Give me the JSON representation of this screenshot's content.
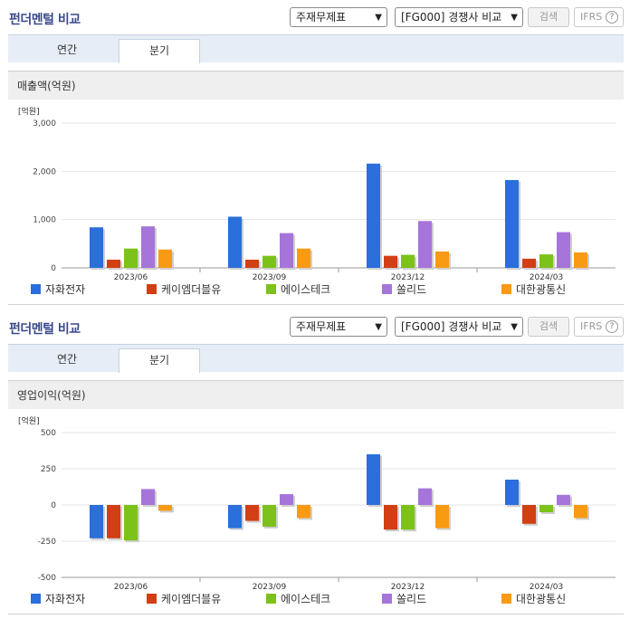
{
  "panels": [
    {
      "title": "펀더멘털 비교",
      "select1": "주재무제표",
      "select2": "[FG000] 경쟁사 비교",
      "search_label": "검색",
      "ifrs_label": "IFRS",
      "help_label": "?",
      "tabs": [
        "연간",
        "분기"
      ],
      "section_title": "매출액(억원)"
    },
    {
      "title": "펀더멘털 비교",
      "select1": "주재무제표",
      "select2": "[FG000] 경쟁사 비교",
      "search_label": "검색",
      "ifrs_label": "IFRS",
      "help_label": "?",
      "tabs": [
        "연간",
        "분기"
      ],
      "section_title": "영업이익(억원)"
    }
  ],
  "colors": [
    "#2a6fdb",
    "#d23f14",
    "#7cc21a",
    "#a675d9",
    "#f99a14"
  ],
  "chart_data": [
    {
      "type": "bar",
      "unit_label": "[억원]",
      "categories": [
        "2023/06",
        "2023/09",
        "2023/12",
        "2024/03"
      ],
      "yticks": [
        "3,000",
        "2,000",
        "1,000",
        "0"
      ],
      "ylim": [
        0,
        3000
      ],
      "series": [
        {
          "name": "자화전자",
          "values": [
            840,
            1060,
            2160,
            1820
          ]
        },
        {
          "name": "케이엠더블유",
          "values": [
            170,
            170,
            250,
            190
          ]
        },
        {
          "name": "에이스테크",
          "values": [
            400,
            250,
            270,
            280
          ]
        },
        {
          "name": "쏠리드",
          "values": [
            860,
            720,
            970,
            740
          ]
        },
        {
          "name": "대한광통신",
          "values": [
            380,
            400,
            340,
            320
          ]
        }
      ]
    },
    {
      "type": "bar",
      "unit_label": "[억원]",
      "categories": [
        "2023/06",
        "2023/09",
        "2023/12",
        "2024/03"
      ],
      "yticks": [
        "500",
        "250",
        "0",
        "-250",
        "-500"
      ],
      "ylim": [
        -500,
        500
      ],
      "series": [
        {
          "name": "자화전자",
          "values": [
            -230,
            -160,
            350,
            175
          ]
        },
        {
          "name": "케이엠더블유",
          "values": [
            -230,
            -110,
            -170,
            -130
          ]
        },
        {
          "name": "에이스테크",
          "values": [
            -245,
            -150,
            -170,
            -50
          ]
        },
        {
          "name": "쏠리드",
          "values": [
            110,
            75,
            115,
            70
          ]
        },
        {
          "name": "대한광통신",
          "values": [
            -40,
            -90,
            -160,
            -90
          ]
        }
      ]
    }
  ]
}
